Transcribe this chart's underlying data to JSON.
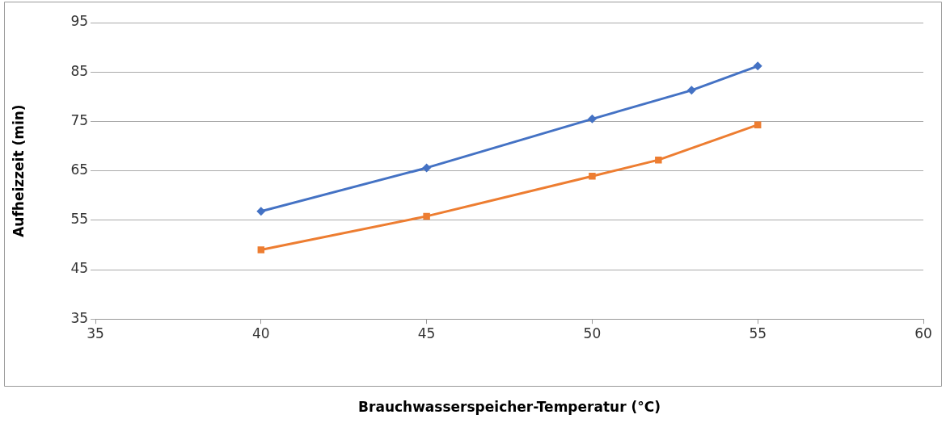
{
  "chart_data": {
    "type": "line",
    "xlabel": "Brauchwasserspeicher-Temperatur (°C)",
    "ylabel": "Aufheizzeit (min)",
    "xlim": [
      35,
      60
    ],
    "xticks": [
      35,
      40,
      45,
      50,
      55,
      60
    ],
    "ylim": [
      35,
      95
    ],
    "yticks": [
      35,
      45,
      55,
      65,
      75,
      85,
      95
    ],
    "grid": "y",
    "line_style": "solid",
    "series": [
      {
        "color": "#ed7d31",
        "marker": "square",
        "x": [
          40,
          45,
          50,
          52,
          55
        ],
        "values": [
          49,
          55.8,
          63.9,
          67.2,
          74.3
        ]
      },
      {
        "color": "#4472c4",
        "marker": "diamond",
        "x": [
          40,
          45,
          50,
          53,
          55
        ],
        "values": [
          56.8,
          65.6,
          75.5,
          81.3,
          86.2
        ]
      }
    ]
  }
}
